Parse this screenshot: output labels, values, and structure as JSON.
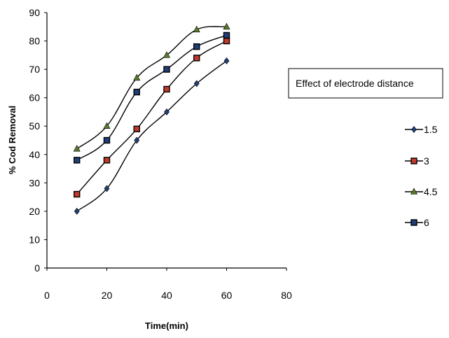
{
  "chart_data": {
    "type": "line",
    "title": "Effect of electrode distance",
    "xlabel": "Time(min)",
    "ylabel": "% Cod Removal",
    "xlim": [
      0,
      80
    ],
    "ylim": [
      0,
      90
    ],
    "x_ticks": [
      "0",
      "20",
      "40",
      "60",
      "80"
    ],
    "y_ticks": [
      "0",
      "10",
      "20",
      "30",
      "40",
      "50",
      "60",
      "70",
      "80",
      "90"
    ],
    "x": [
      10,
      20,
      30,
      40,
      50,
      60
    ],
    "grid": false,
    "legend_position": "right",
    "series": [
      {
        "name": "1.5",
        "marker": "diamond",
        "marker_color": "#1f3f7a",
        "values": [
          20,
          28,
          45,
          55,
          65,
          73
        ]
      },
      {
        "name": "3",
        "marker": "square",
        "marker_color": "#c0392b",
        "values": [
          26,
          38,
          49,
          63,
          74,
          80
        ]
      },
      {
        "name": "4.5",
        "marker": "triangle",
        "marker_color": "#5a7a2a",
        "values": [
          42,
          50,
          67,
          75,
          84,
          85
        ]
      },
      {
        "name": "6",
        "marker": "square",
        "marker_color": "#1f3f7a",
        "values": [
          38,
          45,
          62,
          70,
          78,
          82
        ]
      }
    ]
  }
}
